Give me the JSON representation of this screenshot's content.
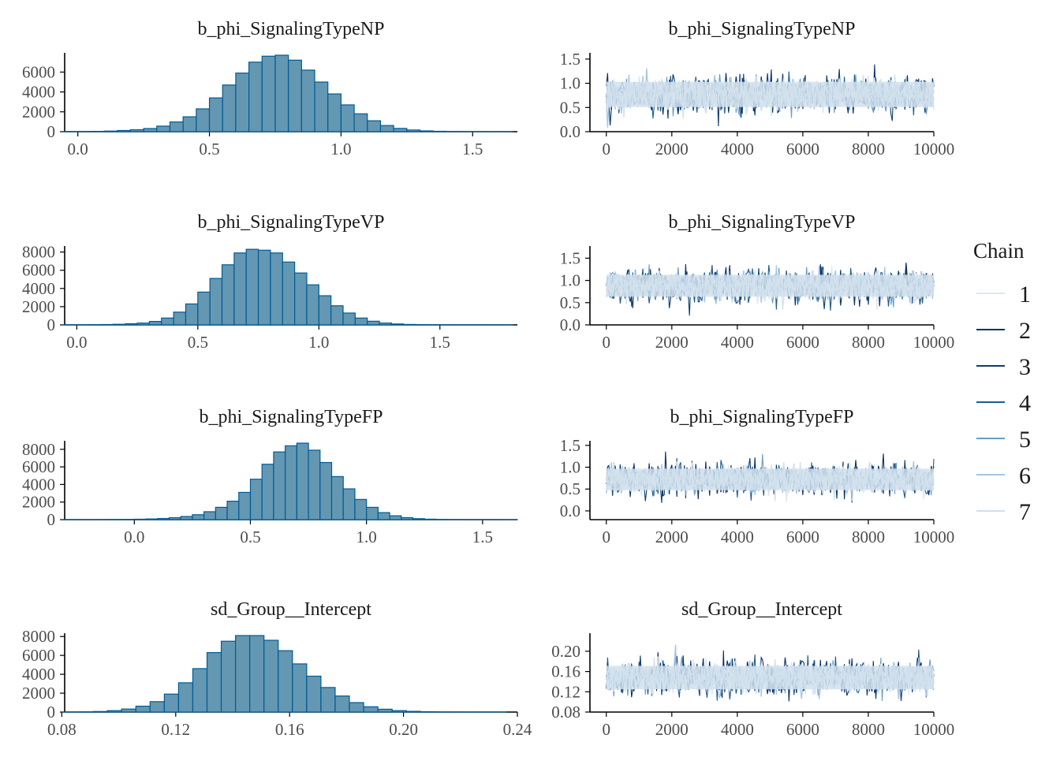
{
  "chart_data": [
    {
      "type": "histogram",
      "title": "b_phi_SignalingTypeNP",
      "xlim": [
        -0.05,
        1.67
      ],
      "ylim": [
        0,
        7700
      ],
      "xticks": [
        0.0,
        0.5,
        1.0,
        1.5
      ],
      "xtick_labels": [
        "0.0",
        "0.5",
        "1.0",
        "1.5"
      ],
      "yticks": [
        0,
        2000,
        4000,
        6000
      ],
      "ytick_labels": [
        "0",
        "2000",
        "4000",
        "6000"
      ],
      "bin_edges": [
        -0.05,
        0.0,
        0.05,
        0.1,
        0.15,
        0.2,
        0.25,
        0.3,
        0.35,
        0.4,
        0.45,
        0.5,
        0.55,
        0.6,
        0.65,
        0.7,
        0.75,
        0.8,
        0.85,
        0.9,
        0.95,
        1.0,
        1.05,
        1.1,
        1.15,
        1.2,
        1.25,
        1.3,
        1.35,
        1.4,
        1.45,
        1.5,
        1.55,
        1.6,
        1.65
      ],
      "counts": [
        10,
        15,
        30,
        60,
        120,
        200,
        320,
        560,
        980,
        1500,
        2300,
        3400,
        4700,
        5900,
        7000,
        7600,
        7700,
        7200,
        6200,
        5000,
        3800,
        2700,
        1800,
        1100,
        620,
        330,
        170,
        80,
        40,
        20,
        10,
        5,
        3,
        2
      ]
    },
    {
      "type": "line",
      "title": "b_phi_SignalingTypeNP",
      "xlim": [
        -500,
        10000
      ],
      "ylim": [
        0.0,
        1.58
      ],
      "xticks": [
        0,
        2000,
        4000,
        6000,
        8000,
        10000
      ],
      "xtick_labels": [
        "0",
        "2000",
        "4000",
        "6000",
        "8000",
        "10000"
      ],
      "yticks": [
        0.0,
        0.5,
        1.0,
        1.5
      ],
      "ytick_labels": [
        "0.0",
        "0.5",
        "1.0",
        "1.5"
      ],
      "iterations": 10000,
      "chain_center": 0.77,
      "chain_sd": 0.18
    },
    {
      "type": "histogram",
      "title": "b_phi_SignalingTypeVP",
      "xlim": [
        -0.05,
        1.82
      ],
      "ylim": [
        0,
        8400
      ],
      "xticks": [
        0.0,
        0.5,
        1.0,
        1.5
      ],
      "xtick_labels": [
        "0.0",
        "0.5",
        "1.0",
        "1.5"
      ],
      "yticks": [
        0,
        2000,
        4000,
        6000,
        8000
      ],
      "ytick_labels": [
        "0",
        "2000",
        "4000",
        "6000",
        "8000"
      ],
      "bin_edges": [
        -0.05,
        0.0,
        0.05,
        0.1,
        0.15,
        0.2,
        0.25,
        0.3,
        0.35,
        0.4,
        0.45,
        0.5,
        0.55,
        0.6,
        0.65,
        0.7,
        0.75,
        0.8,
        0.85,
        0.9,
        0.95,
        1.0,
        1.05,
        1.1,
        1.15,
        1.2,
        1.25,
        1.3,
        1.35,
        1.4,
        1.45,
        1.5,
        1.55,
        1.6,
        1.65,
        1.7,
        1.75,
        1.8
      ],
      "counts": [
        8,
        10,
        20,
        40,
        70,
        120,
        200,
        380,
        750,
        1400,
        2300,
        3600,
        5100,
        6600,
        7900,
        8300,
        8200,
        7900,
        6900,
        5700,
        4400,
        3200,
        2100,
        1300,
        750,
        400,
        200,
        100,
        50,
        25,
        12,
        6,
        3,
        2,
        1,
        1,
        1
      ]
    },
    {
      "type": "line",
      "title": "b_phi_SignalingTypeVP",
      "xlim": [
        -500,
        10000
      ],
      "ylim": [
        0.0,
        1.72
      ],
      "xticks": [
        0,
        2000,
        4000,
        6000,
        8000,
        10000
      ],
      "xtick_labels": [
        "0",
        "2000",
        "4000",
        "6000",
        "8000",
        "10000"
      ],
      "yticks": [
        0.0,
        0.5,
        1.0,
        1.5
      ],
      "ytick_labels": [
        "0.0",
        "0.5",
        "1.0",
        "1.5"
      ],
      "iterations": 10000,
      "chain_center": 0.88,
      "chain_sd": 0.17
    },
    {
      "type": "histogram",
      "title": "b_phi_SignalingTypeFP",
      "xlim": [
        -0.3,
        1.65
      ],
      "ylim": [
        0,
        8700
      ],
      "xticks": [
        0.0,
        0.5,
        1.0,
        1.5
      ],
      "xtick_labels": [
        "0.0",
        "0.5",
        "1.0",
        "1.5"
      ],
      "yticks": [
        0,
        2000,
        4000,
        6000,
        8000
      ],
      "ytick_labels": [
        "0",
        "2000",
        "4000",
        "6000",
        "8000"
      ],
      "bin_edges": [
        -0.3,
        -0.25,
        -0.2,
        -0.15,
        -0.1,
        -0.05,
        0.0,
        0.05,
        0.1,
        0.15,
        0.2,
        0.25,
        0.3,
        0.35,
        0.4,
        0.45,
        0.5,
        0.55,
        0.6,
        0.65,
        0.7,
        0.75,
        0.8,
        0.85,
        0.9,
        0.95,
        1.0,
        1.05,
        1.1,
        1.15,
        1.2,
        1.25,
        1.3,
        1.35,
        1.4,
        1.45,
        1.5,
        1.55,
        1.6,
        1.65
      ],
      "counts": [
        3,
        5,
        8,
        12,
        20,
        30,
        50,
        80,
        130,
        220,
        360,
        560,
        900,
        1400,
        2100,
        3100,
        4600,
        6300,
        7700,
        8400,
        8700,
        7900,
        6500,
        4900,
        3500,
        2300,
        1400,
        800,
        440,
        230,
        110,
        55,
        25,
        12,
        6,
        3,
        2,
        1,
        1
      ]
    },
    {
      "type": "line",
      "title": "b_phi_SignalingTypeFP",
      "xlim": [
        -500,
        10000
      ],
      "ylim": [
        -0.2,
        1.55
      ],
      "xticks": [
        0,
        2000,
        4000,
        6000,
        8000,
        10000
      ],
      "xtick_labels": [
        "0",
        "2000",
        "4000",
        "6000",
        "8000",
        "10000"
      ],
      "yticks": [
        0.0,
        0.5,
        1.0,
        1.5
      ],
      "ytick_labels": [
        "0.0",
        "0.5",
        "1.0",
        "1.5"
      ],
      "iterations": 10000,
      "chain_center": 0.72,
      "chain_sd": 0.17
    },
    {
      "type": "histogram",
      "title": "sd_Group__Intercept",
      "xlim": [
        0.081,
        0.24
      ],
      "ylim": [
        0,
        8100
      ],
      "xticks": [
        0.08,
        0.12,
        0.16,
        0.2,
        0.24
      ],
      "xtick_labels": [
        "0.08",
        "0.12",
        "0.16",
        "0.20",
        "0.24"
      ],
      "yticks": [
        0,
        2000,
        4000,
        6000,
        8000
      ],
      "ytick_labels": [
        "0",
        "2000",
        "4000",
        "6000",
        "8000"
      ],
      "bin_edges": [
        0.081,
        0.086,
        0.091,
        0.096,
        0.101,
        0.106,
        0.111,
        0.116,
        0.121,
        0.126,
        0.131,
        0.136,
        0.141,
        0.146,
        0.151,
        0.156,
        0.161,
        0.166,
        0.171,
        0.176,
        0.181,
        0.186,
        0.191,
        0.196,
        0.201,
        0.206,
        0.211,
        0.216,
        0.221,
        0.226,
        0.231,
        0.236
      ],
      "counts": [
        5,
        20,
        60,
        150,
        320,
        620,
        1100,
        1900,
        3100,
        4600,
        6300,
        7500,
        8100,
        8100,
        7600,
        6500,
        5100,
        3800,
        2600,
        1700,
        1000,
        560,
        300,
        150,
        75,
        35,
        15,
        8,
        4,
        2,
        1
      ]
    },
    {
      "type": "line",
      "title": "sd_Group__Intercept",
      "xlim": [
        -500,
        10000
      ],
      "ylim": [
        0.08,
        0.231
      ],
      "xticks": [
        0,
        2000,
        4000,
        6000,
        8000,
        10000
      ],
      "xtick_labels": [
        "0",
        "2000",
        "4000",
        "6000",
        "8000",
        "10000"
      ],
      "yticks": [
        0.08,
        0.12,
        0.16,
        0.2
      ],
      "ytick_labels": [
        "0.08",
        "0.12",
        "0.16",
        "0.20"
      ],
      "iterations": 10000,
      "chain_center": 0.148,
      "chain_sd": 0.016
    }
  ],
  "legend": {
    "title": "Chain",
    "position": "right",
    "items": [
      {
        "label": "1",
        "color": "#dce8f2"
      },
      {
        "label": "2",
        "color": "#08306b"
      },
      {
        "label": "3",
        "color": "#0d3d73"
      },
      {
        "label": "4",
        "color": "#1f5c8c"
      },
      {
        "label": "5",
        "color": "#6b9dc2"
      },
      {
        "label": "6",
        "color": "#a6c4de"
      },
      {
        "label": "7",
        "color": "#d0e0ee"
      }
    ]
  },
  "colors": {
    "hist_fill": "#6497b1",
    "hist_stroke": "#005b96",
    "axis": "#000000",
    "tick_text": "#4d4d4d",
    "trace_fill": "#d1e1ec"
  }
}
